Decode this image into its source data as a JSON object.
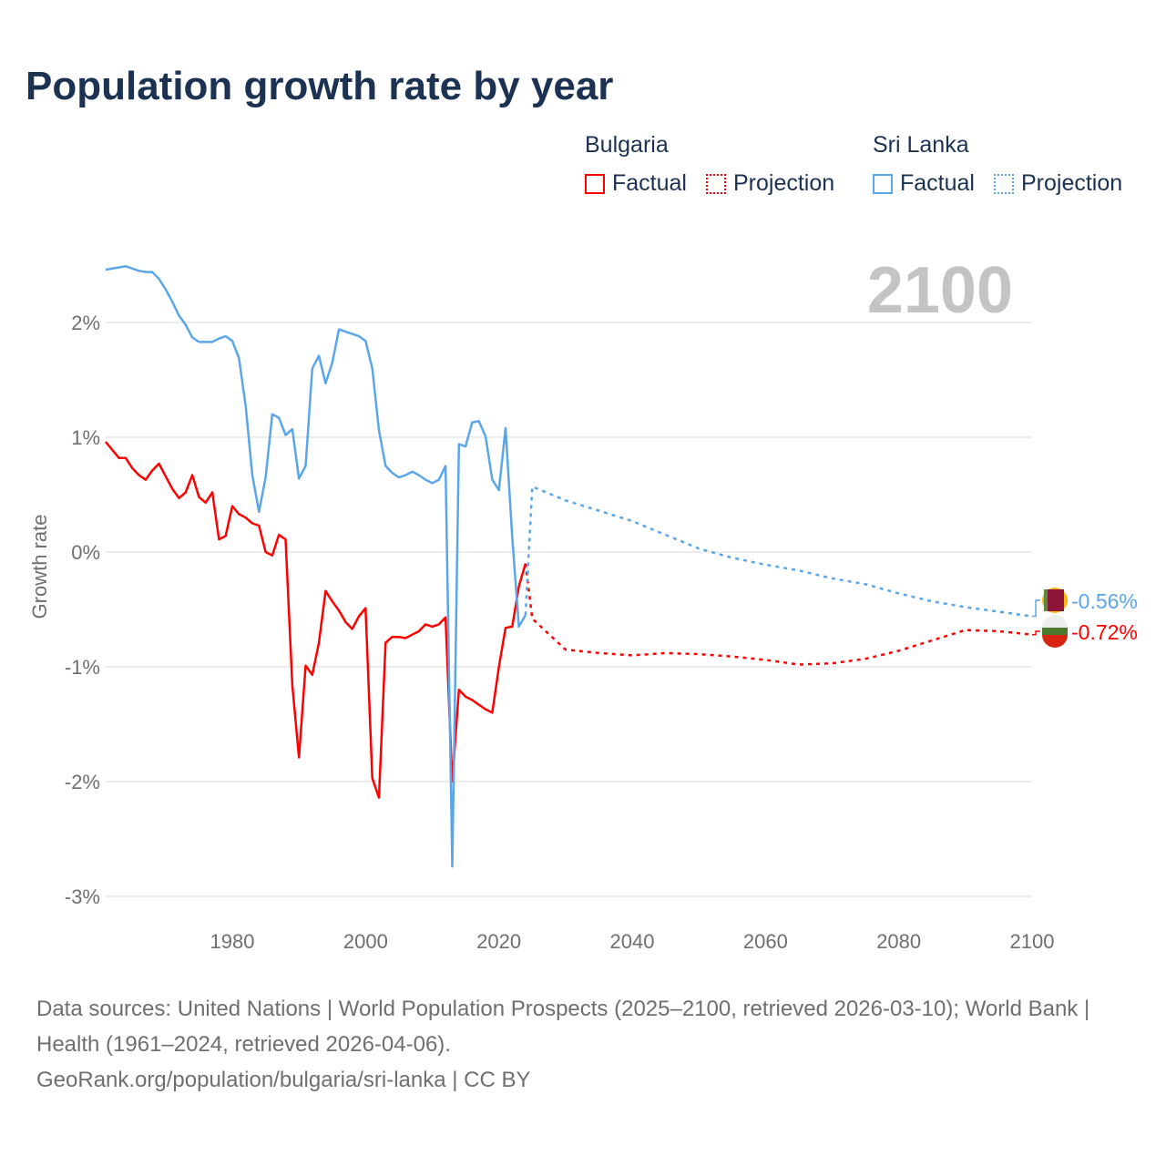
{
  "title": "Population growth rate by year",
  "legend": {
    "groups": [
      {
        "name": "Bulgaria",
        "factual": "Factual",
        "projection": "Projection",
        "color": "#ff0000"
      },
      {
        "name": "Sri Lanka",
        "factual": "Factual",
        "projection": "Projection",
        "color": "#5aa6ea"
      }
    ]
  },
  "chart_data": {
    "type": "line",
    "title": "Population growth rate by year",
    "ylabel": "Growth rate",
    "xlabel": "",
    "current_year_label": "2100",
    "xlim": [
      1961,
      2100
    ],
    "ylim": [
      -3.2,
      2.6
    ],
    "x_ticks": [
      1980,
      2000,
      2020,
      2040,
      2060,
      2080,
      2100
    ],
    "y_ticks": [
      {
        "v": 2,
        "label": "2%"
      },
      {
        "v": 1,
        "label": "1%"
      },
      {
        "v": 0,
        "label": "0%"
      },
      {
        "v": -1,
        "label": "-1%"
      },
      {
        "v": -2,
        "label": "-2%"
      },
      {
        "v": -3,
        "label": "-3%"
      }
    ],
    "grid": true,
    "series": [
      {
        "name": "Bulgaria",
        "color": "#ff0000",
        "end_label": "-0.72%",
        "factual_start": 1961,
        "factual": [
          0.96,
          0.89,
          0.82,
          0.82,
          0.73,
          0.67,
          0.63,
          0.71,
          0.77,
          0.66,
          0.55,
          0.47,
          0.52,
          0.67,
          0.48,
          0.43,
          0.52,
          0.11,
          0.14,
          0.4,
          0.33,
          0.3,
          0.25,
          0.23,
          0.0,
          -0.03,
          0.15,
          0.11,
          -1.16,
          -1.79,
          -0.99,
          -1.07,
          -0.79,
          -0.34,
          -0.43,
          -0.51,
          -0.61,
          -0.67,
          -0.56,
          -0.49,
          -1.97,
          -2.14,
          -0.79,
          -0.74,
          -0.74,
          -0.75,
          -0.72,
          -0.69,
          -0.63,
          -0.65,
          -0.63,
          -0.57,
          -2.0,
          -1.2,
          -1.26,
          -1.29,
          -1.33,
          -1.37,
          -1.4,
          -1.0,
          -0.66,
          -0.65,
          -0.3,
          -0.1
        ],
        "projection_x": [
          2024,
          2025,
          2030,
          2035,
          2040,
          2045,
          2050,
          2055,
          2060,
          2065,
          2070,
          2075,
          2080,
          2085,
          2090,
          2095,
          2100
        ],
        "projection": [
          -0.1,
          -0.58,
          -0.85,
          -0.88,
          -0.9,
          -0.88,
          -0.89,
          -0.91,
          -0.94,
          -0.98,
          -0.97,
          -0.93,
          -0.86,
          -0.77,
          -0.68,
          -0.69,
          -0.72
        ]
      },
      {
        "name": "Sri Lanka",
        "color": "#5aa6ea",
        "end_label": "-0.56%",
        "factual_start": 1961,
        "factual": [
          2.46,
          2.47,
          2.48,
          2.49,
          2.47,
          2.45,
          2.44,
          2.44,
          2.38,
          2.29,
          2.18,
          2.06,
          1.98,
          1.87,
          1.83,
          1.83,
          1.83,
          1.86,
          1.88,
          1.84,
          1.69,
          1.28,
          0.67,
          0.35,
          0.65,
          1.2,
          1.17,
          1.02,
          1.07,
          0.64,
          0.75,
          1.6,
          1.71,
          1.47,
          1.65,
          1.94,
          1.92,
          1.9,
          1.88,
          1.84,
          1.6,
          1.06,
          0.75,
          0.69,
          0.65,
          0.67,
          0.7,
          0.67,
          0.63,
          0.6,
          0.63,
          0.75,
          -2.74,
          0.94,
          0.92,
          1.13,
          1.14,
          1.01,
          0.63,
          0.54,
          1.08,
          0.13,
          -0.65,
          -0.55
        ],
        "projection_x": [
          2024,
          2025,
          2030,
          2035,
          2040,
          2045,
          2050,
          2055,
          2060,
          2065,
          2070,
          2075,
          2080,
          2085,
          2090,
          2095,
          2100
        ],
        "projection": [
          -0.55,
          0.57,
          0.45,
          0.36,
          0.27,
          0.15,
          0.03,
          -0.05,
          -0.11,
          -0.16,
          -0.23,
          -0.28,
          -0.36,
          -0.43,
          -0.48,
          -0.52,
          -0.56
        ]
      }
    ]
  },
  "footer": {
    "sources": "Data sources: United Nations | World Population Prospects (2025–2100, retrieved 2026-03-10); World Bank | Health (1961–2024, retrieved 2026-04-06).",
    "credit": "GeoRank.org/population/bulgaria/sri-lanka | CC BY"
  }
}
